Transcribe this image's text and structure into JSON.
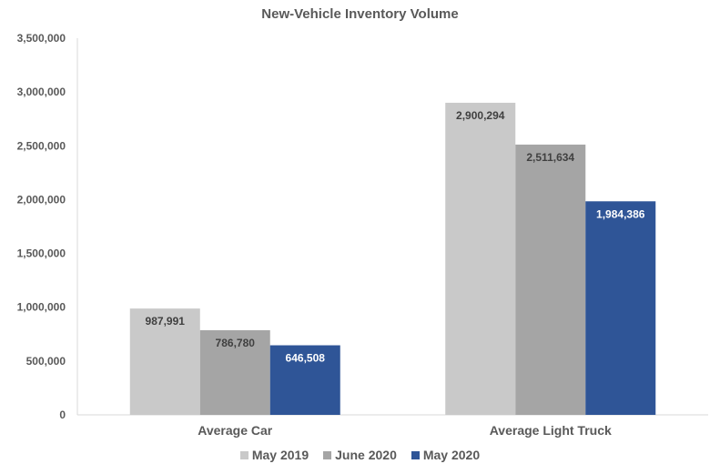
{
  "chart_data": {
    "type": "bar",
    "title": "New-Vehicle Inventory Volume",
    "categories": [
      "Average Car",
      "Average Light Truck"
    ],
    "series": [
      {
        "name": "May 2019",
        "color": "#c9c9c9",
        "label_color": "#404040",
        "values": [
          987991,
          2900294
        ],
        "labels": [
          "987,991",
          "2,900,294"
        ]
      },
      {
        "name": "June 2020",
        "color": "#a5a5a5",
        "label_color": "#404040",
        "values": [
          786780,
          2511634
        ],
        "labels": [
          "786,780",
          "2,511,634"
        ]
      },
      {
        "name": "May 2020",
        "color": "#2f5597",
        "label_color": "#ffffff",
        "values": [
          646508,
          1984386
        ],
        "labels": [
          "646,508",
          "1,984,386"
        ]
      }
    ],
    "ylim": [
      0,
      3500000
    ],
    "yticks": [
      0,
      500000,
      1000000,
      1500000,
      2000000,
      2500000,
      3000000,
      3500000
    ],
    "ytick_labels": [
      "0",
      "500,000",
      "1,000,000",
      "1,500,000",
      "2,000,000",
      "2,500,000",
      "3,000,000",
      "3,500,000"
    ],
    "xlabel": "",
    "ylabel": "",
    "grid": false,
    "legend_position": "bottom"
  }
}
